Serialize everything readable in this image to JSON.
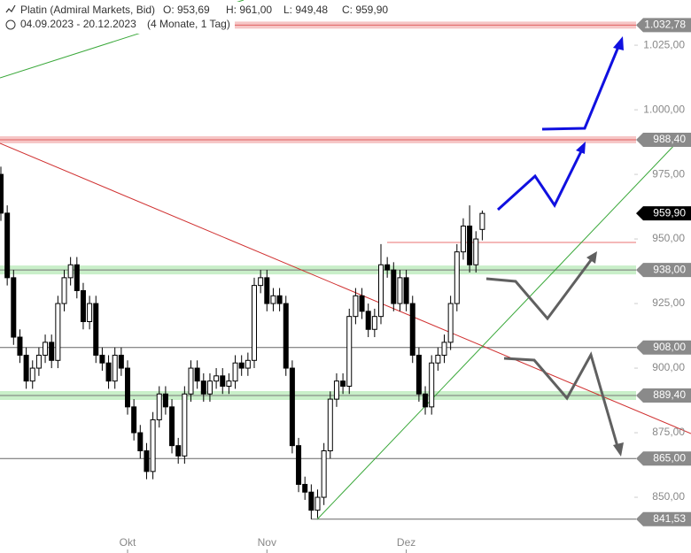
{
  "chart_data": {
    "type": "candlestick",
    "title": "Platin (Admiral Markets, Bid)",
    "header": {
      "open": "O: 953,69",
      "high": "H: 961,00",
      "low": "L: 949,48",
      "close": "C: 959,90",
      "range": "04.09.2023 - 20.12.2023",
      "period": "(4 Monate, 1 Tag)"
    },
    "categories": [
      null,
      null,
      null,
      null,
      null,
      null,
      null,
      null,
      null,
      null,
      null,
      null,
      null,
      null,
      null,
      null,
      null,
      null,
      null,
      null,
      "Okt",
      null,
      null,
      null,
      null,
      null,
      null,
      null,
      null,
      null,
      null,
      null,
      null,
      null,
      null,
      null,
      null,
      null,
      null,
      null,
      null,
      null,
      "Nov",
      null,
      null,
      null,
      null,
      null,
      null,
      null,
      null,
      null,
      null,
      null,
      null,
      null,
      null,
      null,
      null,
      null,
      null,
      null,
      null,
      null,
      "Dez",
      null,
      null,
      null,
      null,
      null,
      null,
      null,
      null,
      null,
      null,
      null,
      null
    ],
    "open": [
      975,
      960,
      935,
      912,
      905,
      895,
      900,
      905,
      910,
      903,
      925,
      935,
      940,
      930,
      918,
      925,
      905,
      902,
      895,
      905,
      900,
      885,
      875,
      868,
      860,
      880,
      890,
      885,
      870,
      866,
      890,
      900,
      895,
      890,
      895,
      897,
      893,
      895,
      902,
      900,
      903,
      932,
      935,
      925,
      928,
      925,
      900,
      870,
      855,
      852,
      845,
      850,
      868,
      888,
      895,
      893,
      920,
      928,
      922,
      915,
      920,
      940,
      938,
      925,
      935,
      925,
      905,
      890,
      885,
      902,
      905,
      910,
      925,
      945,
      955,
      940,
      953.69
    ],
    "high": [
      978,
      963,
      938,
      915,
      908,
      903,
      908,
      913,
      913,
      928,
      938,
      943,
      943,
      933,
      928,
      928,
      908,
      905,
      908,
      908,
      903,
      888,
      878,
      871,
      883,
      893,
      893,
      888,
      873,
      893,
      903,
      903,
      898,
      898,
      900,
      900,
      898,
      905,
      905,
      906,
      935,
      938,
      938,
      931,
      931,
      928,
      903,
      873,
      858,
      855,
      853,
      871,
      891,
      898,
      898,
      923,
      931,
      931,
      925,
      923,
      948,
      943,
      941,
      938,
      938,
      928,
      908,
      893,
      905,
      908,
      913,
      928,
      948,
      958,
      963,
      953,
      961
    ],
    "low": [
      957,
      932,
      909,
      902,
      892,
      892,
      897,
      902,
      900,
      900,
      922,
      932,
      927,
      915,
      915,
      902,
      899,
      892,
      892,
      897,
      882,
      872,
      865,
      857,
      857,
      877,
      882,
      867,
      863,
      863,
      887,
      892,
      887,
      887,
      892,
      890,
      890,
      892,
      897,
      897,
      900,
      929,
      922,
      922,
      922,
      897,
      867,
      852,
      849,
      841.53,
      842,
      847,
      865,
      885,
      890,
      890,
      917,
      919,
      912,
      912,
      917,
      935,
      922,
      922,
      922,
      902,
      887,
      882,
      882,
      899,
      902,
      907,
      922,
      942,
      937,
      937,
      949.48
    ],
    "close": [
      960,
      935,
      912,
      905,
      895,
      900,
      905,
      910,
      903,
      925,
      935,
      940,
      930,
      918,
      925,
      905,
      902,
      895,
      905,
      900,
      885,
      875,
      868,
      860,
      880,
      890,
      885,
      870,
      866,
      890,
      900,
      895,
      890,
      895,
      897,
      893,
      895,
      902,
      900,
      903,
      932,
      935,
      925,
      928,
      925,
      900,
      870,
      855,
      852,
      845,
      850,
      868,
      888,
      895,
      893,
      920,
      928,
      922,
      915,
      920,
      940,
      938,
      925,
      935,
      925,
      905,
      890,
      885,
      902,
      905,
      910,
      925,
      945,
      955,
      940,
      950,
      959.9
    ],
    "ylim": [
      837,
      1042.5
    ],
    "yticks": [
      {
        "value": 850,
        "label": "850,00"
      },
      {
        "value": 875,
        "label": "875,00"
      },
      {
        "value": 900,
        "label": "900,00"
      },
      {
        "value": 925,
        "label": "925,00"
      },
      {
        "value": 950,
        "label": "950,00"
      },
      {
        "value": 975,
        "label": "975,00"
      },
      {
        "value": 1000,
        "label": "1.000,00"
      },
      {
        "value": 1025,
        "label": "1.025,00"
      }
    ],
    "levels": [
      {
        "value": 1032.78,
        "label": "1.032,78",
        "kind": "resistance"
      },
      {
        "value": 988.4,
        "label": "988,40",
        "kind": "resistance"
      },
      {
        "value": 959.9,
        "label": "959,90",
        "kind": "current"
      },
      {
        "value": 938,
        "label": "938,00",
        "kind": "support"
      },
      {
        "value": 908,
        "label": "908,00",
        "kind": "line"
      },
      {
        "value": 889.4,
        "label": "889,40",
        "kind": "support"
      },
      {
        "value": 865,
        "label": "865,00",
        "kind": "line"
      },
      {
        "value": 841.53,
        "label": "841,53",
        "kind": "low"
      }
    ]
  }
}
